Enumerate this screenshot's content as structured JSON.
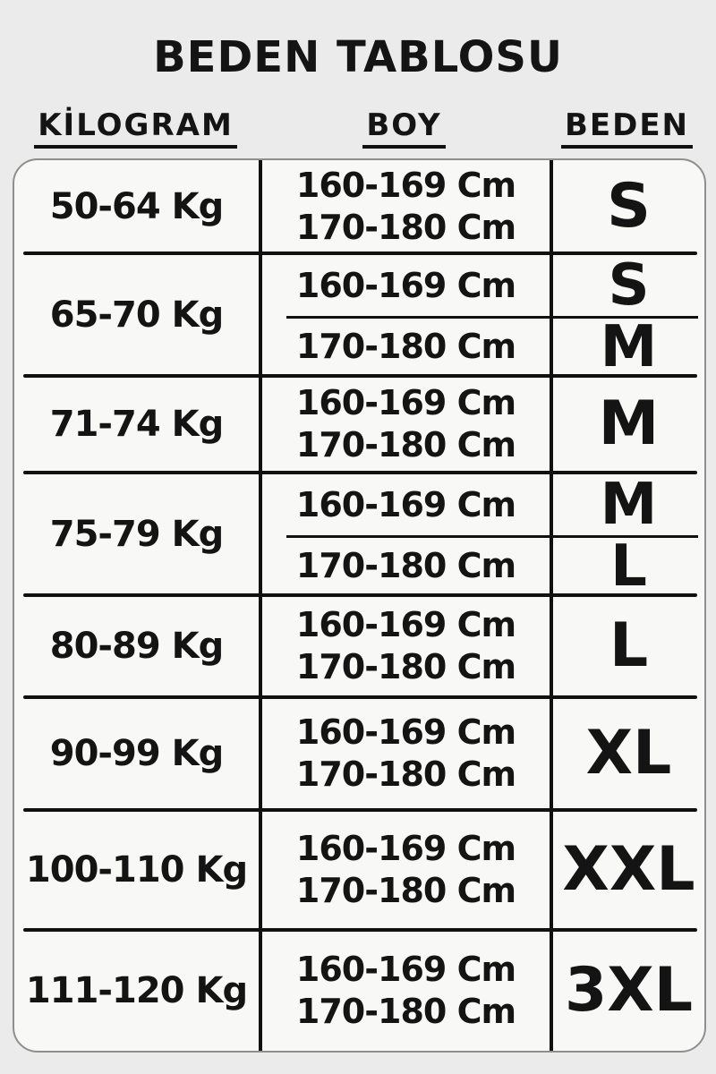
{
  "page": {
    "title": "BEDEN TABLOSU",
    "background_color": "#ebebeb",
    "card_color": "#f8f8f6",
    "line_color": "#111111",
    "text_color": "#141414"
  },
  "chart_data": {
    "type": "table",
    "title": "BEDEN TABLOSU",
    "columns": [
      "KİLOGRAM",
      "BOY",
      "BEDEN"
    ],
    "rows": [
      {
        "kilogram": "50-64 Kg",
        "split": false,
        "entries": [
          {
            "boy": "160-169 Cm",
            "beden": "S"
          },
          {
            "boy": "170-180 Cm",
            "beden": "S"
          }
        ]
      },
      {
        "kilogram": "65-70 Kg",
        "split": true,
        "entries": [
          {
            "boy": "160-169 Cm",
            "beden": "S"
          },
          {
            "boy": "170-180 Cm",
            "beden": "M"
          }
        ]
      },
      {
        "kilogram": "71-74 Kg",
        "split": false,
        "entries": [
          {
            "boy": "160-169 Cm",
            "beden": "M"
          },
          {
            "boy": "170-180 Cm",
            "beden": "M"
          }
        ]
      },
      {
        "kilogram": "75-79 Kg",
        "split": true,
        "entries": [
          {
            "boy": "160-169 Cm",
            "beden": "M"
          },
          {
            "boy": "170-180 Cm",
            "beden": "L"
          }
        ]
      },
      {
        "kilogram": "80-89 Kg",
        "split": false,
        "entries": [
          {
            "boy": "160-169 Cm",
            "beden": "L"
          },
          {
            "boy": "170-180 Cm",
            "beden": "L"
          }
        ]
      },
      {
        "kilogram": "90-99 Kg",
        "split": false,
        "entries": [
          {
            "boy": "160-169 Cm",
            "beden": "XL"
          },
          {
            "boy": "170-180 Cm",
            "beden": "XL"
          }
        ]
      },
      {
        "kilogram": "100-110 Kg",
        "split": false,
        "entries": [
          {
            "boy": "160-169 Cm",
            "beden": "XXL"
          },
          {
            "boy": "170-180 Cm",
            "beden": "XXL"
          }
        ]
      },
      {
        "kilogram": "111-120 Kg",
        "split": false,
        "entries": [
          {
            "boy": "160-169 Cm",
            "beden": "3XL"
          },
          {
            "boy": "170-180 Cm",
            "beden": "3XL"
          }
        ]
      }
    ]
  }
}
